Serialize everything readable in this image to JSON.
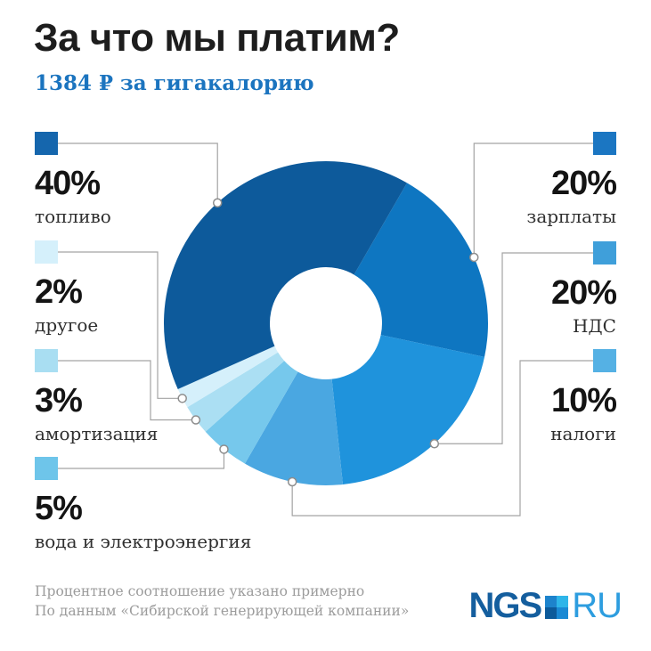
{
  "header": {
    "title": "За что мы платим?",
    "subtitle": "1384 ₽ за гигакалорию"
  },
  "chart_data": {
    "type": "donut",
    "title": "За что мы платим?",
    "subtitle": "1384 ₽ за гигакалорию",
    "start_angle_deg": 60,
    "direction": "clockwise",
    "total": 100,
    "segments": [
      {
        "label": "зарплаты",
        "value": 20,
        "color": "#0e76c1"
      },
      {
        "label": "НДС",
        "value": 20,
        "color": "#1f93dc"
      },
      {
        "label": "налоги",
        "value": 10,
        "color": "#4aa7e1"
      },
      {
        "label": "вода и электроэнергия",
        "value": 5,
        "color": "#76c8ec"
      },
      {
        "label": "амортизация",
        "value": 3,
        "color": "#abdff3"
      },
      {
        "label": "другое",
        "value": 2,
        "color": "#d5f0fb"
      },
      {
        "label": "топливо",
        "value": 40,
        "color": "#0d5a9b"
      }
    ]
  },
  "legend": {
    "left": [
      {
        "pct": "40%",
        "label": "топливо",
        "swatch": "#1566ad"
      },
      {
        "pct": "2%",
        "label": "другое",
        "swatch": "#d5f0fb"
      },
      {
        "pct": "3%",
        "label": "амортизация",
        "swatch": "#a9def2"
      },
      {
        "pct": "5%",
        "label": "вода и электроэнергия",
        "swatch": "#6ec5ea"
      }
    ],
    "right": [
      {
        "pct": "20%",
        "label": "зарплаты",
        "swatch": "#1b76c2"
      },
      {
        "pct": "20%",
        "label": "НДС",
        "swatch": "#3f9fda"
      },
      {
        "pct": "10%",
        "label": "налоги",
        "swatch": "#55b1e4"
      }
    ]
  },
  "footer": {
    "line1": "Процентное соотношение указано примерно",
    "line2": "По данным «Сибирской генерирующей компании»"
  },
  "logo": {
    "ngs": "NGS",
    "ru": "RU",
    "ngs_color": "#145e9e",
    "ru_color": "#2d9ddf",
    "square_colors": {
      "tl": "#1d83cc",
      "tr": "#2eb5e9",
      "bl": "#0c5a9a",
      "br": "#1a89d4"
    }
  },
  "colors": {
    "subtitle": "#1b74bf",
    "connector": "#a3a3a3",
    "dot_stroke": "#8d8d8d"
  }
}
